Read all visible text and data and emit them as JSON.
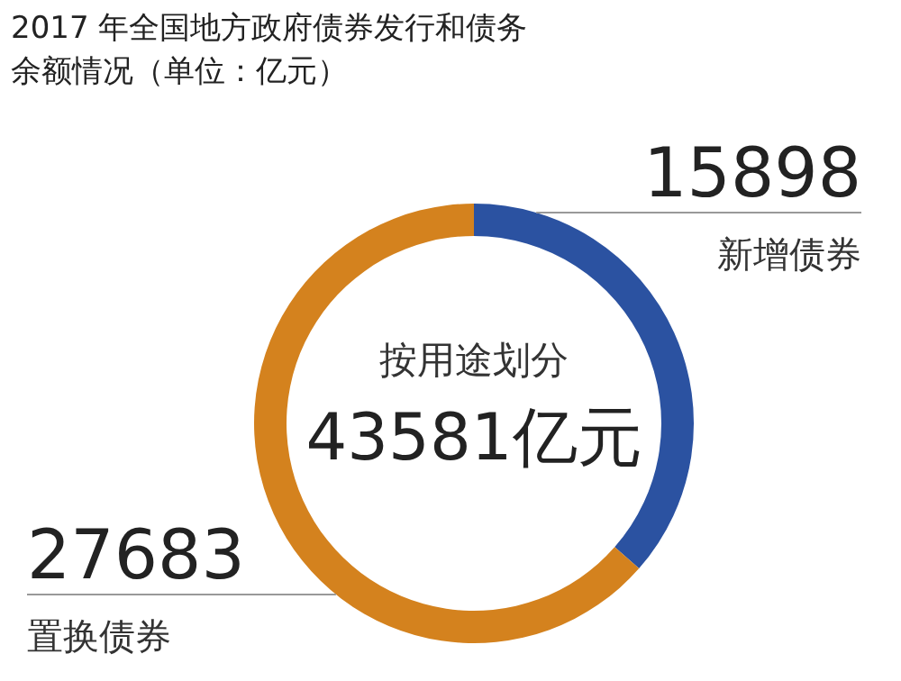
{
  "chart_data": {
    "type": "donut",
    "title": "2017 年全国地方政府债券发行和债务余额情况（单位：亿元）",
    "categories": [
      "新增债券",
      "置换债券"
    ],
    "values": [
      15898,
      27683
    ],
    "colors": [
      "#2b52a1",
      "#d4821e"
    ],
    "data_labels": true,
    "annotations": [
      "按用途划分",
      "43581亿元"
    ]
  }
}
